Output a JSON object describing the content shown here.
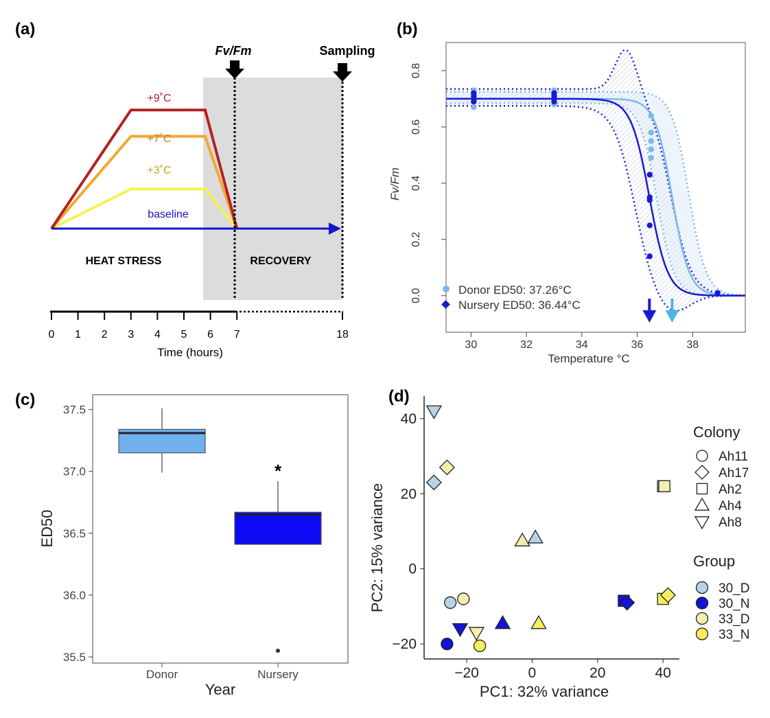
{
  "panel_labels": {
    "a": "(a)",
    "b": "(b)",
    "c": "(c)",
    "d": "(d)"
  },
  "colors": {
    "t9": "#b22222",
    "t7": "#f2a830",
    "t3": "#f7f154",
    "baseline": "#1515c8",
    "shade": "#dcdcdc",
    "label9": "#b22222",
    "label7": "#d07a28",
    "label3": "#c9a21a",
    "donor": "#7db8e8",
    "nursery": "#1a1ad4",
    "donor_box": "#6fb0ee",
    "nursery_box": "#0a0af5",
    "g30D": "#b7d3e8",
    "g30N": "#1414d4",
    "g33D": "#f6eeae",
    "g33N": "#f6ee5e"
  },
  "chart_data": [
    {
      "type": "line",
      "title": "(a)",
      "xlabel": "Time (hours)",
      "x_ticks": [
        0,
        1,
        2,
        3,
        4,
        5,
        6,
        7,
        18
      ],
      "phase_labels": {
        "heat": "HEAT STRESS",
        "recovery": "RECOVERY"
      },
      "markers": {
        "fvfm": "Fv/Fm",
        "sampling": "Sampling"
      },
      "series": [
        {
          "name": "+9˚C",
          "x": [
            0,
            3,
            5.8,
            7
          ],
          "y": [
            0,
            9,
            9,
            0
          ]
        },
        {
          "name": "+7˚C",
          "x": [
            0,
            3,
            5.8,
            7
          ],
          "y": [
            0,
            7,
            7,
            0
          ]
        },
        {
          "name": "+3˚C",
          "x": [
            0,
            3,
            5.8,
            7
          ],
          "y": [
            0,
            3,
            3,
            0
          ]
        },
        {
          "name": "baseline",
          "x": [
            0,
            18
          ],
          "y": [
            0,
            0
          ]
        }
      ]
    },
    {
      "type": "scatter",
      "title": "(b)",
      "xlabel": "Temperature °C",
      "ylabel": "Fv/Fm",
      "xlim": [
        29.1,
        39.9
      ],
      "ylim": [
        -0.13,
        0.9
      ],
      "x_ticks": [
        30,
        32,
        34,
        36,
        38
      ],
      "y_ticks": [
        0.0,
        0.2,
        0.4,
        0.6,
        0.8
      ],
      "series": [
        {
          "name": "Donor",
          "legend": "Donor ED50: 37.26°C",
          "ed50": 37.26,
          "points": [
            [
              30.1,
              0.73
            ],
            [
              30.1,
              0.72
            ],
            [
              30.1,
              0.7
            ],
            [
              30.1,
              0.69
            ],
            [
              30.1,
              0.67
            ],
            [
              33.0,
              0.73
            ],
            [
              33.0,
              0.71
            ],
            [
              33.0,
              0.7
            ],
            [
              33.0,
              0.68
            ],
            [
              36.5,
              0.64
            ],
            [
              36.5,
              0.58
            ],
            [
              36.5,
              0.55
            ],
            [
              36.5,
              0.52
            ],
            [
              36.5,
              0.49
            ]
          ]
        },
        {
          "name": "Nursery",
          "legend": "Nursery ED50: 36.44°C",
          "ed50": 36.44,
          "points": [
            [
              30.1,
              0.72
            ],
            [
              30.1,
              0.71
            ],
            [
              30.1,
              0.7
            ],
            [
              30.1,
              0.69
            ],
            [
              33.0,
              0.72
            ],
            [
              33.0,
              0.71
            ],
            [
              33.0,
              0.7
            ],
            [
              33.0,
              0.69
            ],
            [
              36.45,
              0.43
            ],
            [
              36.45,
              0.35
            ],
            [
              36.45,
              0.34
            ],
            [
              36.45,
              0.25
            ],
            [
              36.45,
              0.14
            ],
            [
              38.9,
              0.01
            ]
          ]
        }
      ]
    },
    {
      "type": "box",
      "title": "(c)",
      "xlabel": "Year",
      "ylabel": "ED50",
      "ylim": [
        35.45,
        37.62
      ],
      "y_ticks": [
        "35.5",
        "36.0",
        "36.5",
        "37.0",
        "37.5"
      ],
      "categories": [
        "Donor",
        "Nursery"
      ],
      "boxes": [
        {
          "name": "Donor",
          "whisker_low": 36.99,
          "q1": 37.15,
          "median": 37.31,
          "q3": 37.34,
          "whisker_high": 37.51
        },
        {
          "name": "Nursery",
          "whisker_low": 36.41,
          "q1": 36.41,
          "median": 36.65,
          "q3": 36.67,
          "whisker_high": 36.92,
          "outliers": [
            35.55
          ]
        }
      ],
      "annotations": [
        "*"
      ]
    },
    {
      "type": "scatter",
      "title": "(d)",
      "xlabel": "PC1: 32% variance",
      "ylabel": "PC2: 15% variance",
      "xlim": [
        -33,
        45
      ],
      "ylim": [
        -24,
        46
      ],
      "x_ticks": [
        -20,
        0,
        20,
        40
      ],
      "y_ticks": [
        -20,
        0,
        20,
        40
      ],
      "legend_colony": {
        "title": "Colony",
        "items": [
          "Ah11",
          "Ah17",
          "Ah2",
          "Ah4",
          "Ah8"
        ]
      },
      "legend_group": {
        "title": "Group",
        "items": [
          "30_D",
          "30_N",
          "33_D",
          "33_N"
        ]
      },
      "points": [
        {
          "x": -30,
          "y": 42,
          "colony": "Ah8",
          "group": "30_D"
        },
        {
          "x": -30,
          "y": 23,
          "colony": "Ah17",
          "group": "30_D"
        },
        {
          "x": -26,
          "y": 27,
          "colony": "Ah17",
          "group": "33_D"
        },
        {
          "x": 40,
          "y": 22,
          "colony": "Ah2",
          "group": "30_D"
        },
        {
          "x": 40.4,
          "y": 22,
          "colony": "Ah2",
          "group": "33_D"
        },
        {
          "x": -3,
          "y": 7.5,
          "colony": "Ah4",
          "group": "33_D"
        },
        {
          "x": 1,
          "y": 8.3,
          "colony": "Ah4",
          "group": "30_D"
        },
        {
          "x": -25,
          "y": -9,
          "colony": "Ah11",
          "group": "30_D"
        },
        {
          "x": -21,
          "y": -8,
          "colony": "Ah11",
          "group": "33_D"
        },
        {
          "x": -26,
          "y": -20,
          "colony": "Ah11",
          "group": "30_N"
        },
        {
          "x": -22,
          "y": -16,
          "colony": "Ah8",
          "group": "30_N"
        },
        {
          "x": -17,
          "y": -17,
          "colony": "Ah8",
          "group": "33_D"
        },
        {
          "x": -16,
          "y": -20.5,
          "colony": "Ah11",
          "group": "33_N"
        },
        {
          "x": -9,
          "y": -14.5,
          "colony": "Ah4",
          "group": "30_N"
        },
        {
          "x": 2,
          "y": -14.5,
          "colony": "Ah4",
          "group": "33_N"
        },
        {
          "x": 28,
          "y": -8.5,
          "colony": "Ah2",
          "group": "30_N"
        },
        {
          "x": 29,
          "y": -9,
          "colony": "Ah17",
          "group": "30_N"
        },
        {
          "x": 40,
          "y": -8,
          "colony": "Ah2",
          "group": "33_N"
        },
        {
          "x": 41.5,
          "y": -7,
          "colony": "Ah17",
          "group": "33_N"
        }
      ]
    }
  ]
}
